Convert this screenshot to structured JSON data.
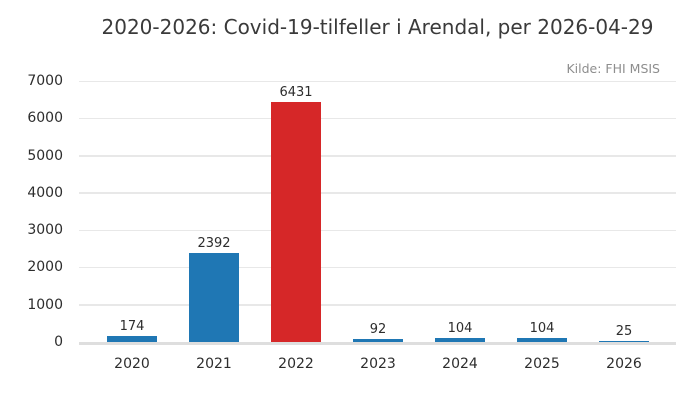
{
  "chart_data": {
    "type": "bar",
    "title": "2020-2026: Covid-19-tilfeller i Arendal, per 2026-04-29",
    "source_note": "Kilde: FHI MSIS",
    "categories": [
      "2020",
      "2021",
      "2022",
      "2023",
      "2024",
      "2025",
      "2026"
    ],
    "values": [
      174,
      2392,
      6431,
      92,
      104,
      104,
      25
    ],
    "value_labels": [
      "174",
      "2392",
      "6431",
      "92",
      "104",
      "104",
      "25"
    ],
    "bar_colors": [
      "#1f77b4",
      "#1f77b4",
      "#d62728",
      "#1f77b4",
      "#1f77b4",
      "#1f77b4",
      "#1f77b4"
    ],
    "xlabel": "",
    "ylabel": "",
    "ylim": [
      0,
      7000
    ],
    "yticks": [
      0,
      1000,
      2000,
      3000,
      4000,
      5000,
      6000,
      7000
    ],
    "grid": true,
    "legend_position": "none",
    "colors": {
      "bar_blue": "#1f77b4",
      "bar_red": "#d62728",
      "gridline": "#e8e8e8",
      "baseline": "#dedede",
      "tick_text": "#2d2d2d",
      "title_text": "#3a3a3a",
      "source_text": "#8e8e8e",
      "background": "#ffffff"
    }
  }
}
